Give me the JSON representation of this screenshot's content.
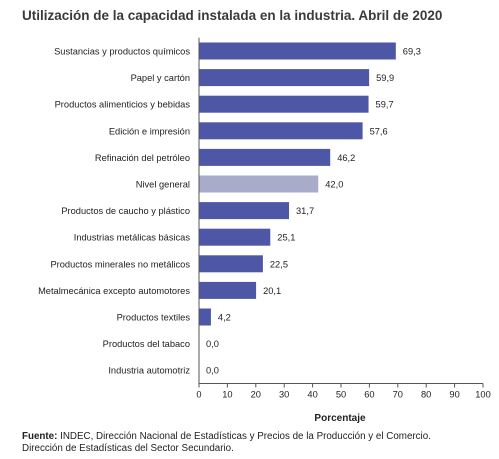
{
  "header": {
    "title": "Utilización de la capacidad instalada en la industria. Abril de 2020"
  },
  "source": {
    "label": "Fuente:",
    "line1": "INDEC, Dirección Nacional de Estadísticas y Precios de la Producción y el Comercio.",
    "line2": "Dirección de Estadísticas del Sector Secundario."
  },
  "chart_data": {
    "type": "bar",
    "orientation": "horizontal",
    "title": "Utilización de la capacidad instalada en la industria. Abril de 2020",
    "xlabel": "Porcentaje",
    "ylabel": "",
    "xlim": [
      0,
      100
    ],
    "xticks": [
      0,
      10,
      20,
      30,
      40,
      50,
      60,
      70,
      80,
      90,
      100
    ],
    "grid": false,
    "colors": {
      "default": "#4e57a6",
      "highlight": "#a9abcb"
    },
    "categories": [
      "Sustancias y productos químicos",
      "Papel y cartón",
      "Productos alimenticios y bebidas",
      "Edición e impresión",
      "Refinación del petróleo",
      "Nivel general",
      "Productos de caucho y plástico",
      "Industrias metálicas básicas",
      "Productos minerales no metálicos",
      "Metalmecánica excepto automotores",
      "Productos textiles",
      "Productos del tabaco",
      "Industria automotriz"
    ],
    "values": [
      69.3,
      59.9,
      59.7,
      57.6,
      46.2,
      42.0,
      31.7,
      25.1,
      22.5,
      20.1,
      4.2,
      0.0,
      0.0
    ],
    "value_labels": [
      "69,3",
      "59,9",
      "59,7",
      "57,6",
      "46,2",
      "42,0",
      "31,7",
      "25,1",
      "22,5",
      "20,1",
      "4,2",
      "0,0",
      "0,0"
    ],
    "highlight": [
      "Nivel general"
    ]
  }
}
